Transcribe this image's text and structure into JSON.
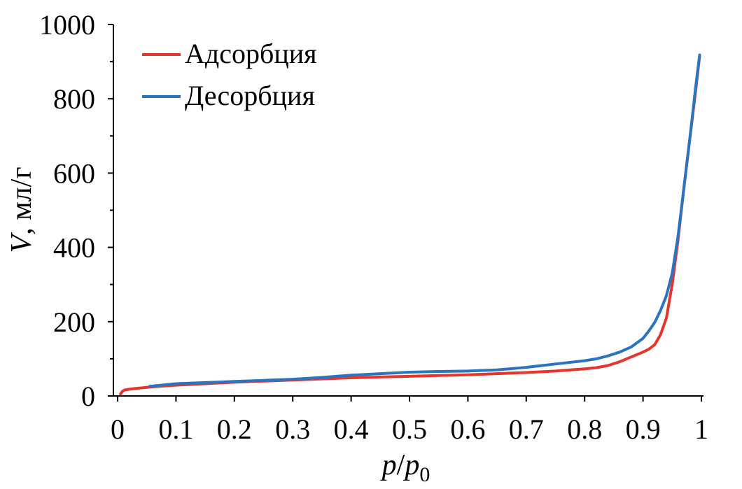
{
  "chart_data": {
    "type": "line",
    "title": "",
    "xlabel": {
      "var1": "p",
      "slash": "/",
      "var2": "p",
      "sub": "0"
    },
    "ylabel": {
      "var": "V",
      "unit": ", мл/г"
    },
    "xlim": [
      0,
      1
    ],
    "ylim": [
      0,
      1000
    ],
    "x_ticks": [
      "0",
      "0.1",
      "0.2",
      "0.3",
      "0.4",
      "0.5",
      "0.6",
      "0.7",
      "0.8",
      "0.9",
      "1"
    ],
    "y_ticks": [
      "0",
      "200",
      "400",
      "600",
      "800",
      "1000"
    ],
    "legend_position": "top-left",
    "grid": false,
    "series": [
      {
        "name": "Адсорбция",
        "color": "#e8352b",
        "x": [
          0.005,
          0.008,
          0.012,
          0.02,
          0.03,
          0.05,
          0.07,
          0.1,
          0.15,
          0.2,
          0.25,
          0.3,
          0.35,
          0.4,
          0.45,
          0.5,
          0.55,
          0.6,
          0.65,
          0.7,
          0.75,
          0.8,
          0.82,
          0.84,
          0.86,
          0.88,
          0.9,
          0.91,
          0.92,
          0.93,
          0.94,
          0.95,
          0.96,
          0.97,
          0.98,
          0.99,
          0.997
        ],
        "y": [
          5,
          12,
          16,
          18,
          20,
          23,
          26,
          29,
          33,
          37,
          40,
          43,
          46,
          49,
          51,
          53,
          55,
          57,
          60,
          63,
          67,
          73,
          76,
          82,
          92,
          105,
          118,
          126,
          138,
          165,
          210,
          300,
          420,
          560,
          690,
          820,
          915
        ]
      },
      {
        "name": "Десорбция",
        "color": "#2a74c0",
        "x": [
          0.997,
          0.99,
          0.98,
          0.97,
          0.96,
          0.95,
          0.94,
          0.93,
          0.92,
          0.91,
          0.9,
          0.88,
          0.86,
          0.84,
          0.82,
          0.8,
          0.75,
          0.7,
          0.65,
          0.6,
          0.55,
          0.5,
          0.45,
          0.4,
          0.35,
          0.3,
          0.25,
          0.2,
          0.15,
          0.1,
          0.055
        ],
        "y": [
          918,
          830,
          690,
          560,
          430,
          330,
          270,
          230,
          198,
          175,
          155,
          132,
          118,
          108,
          100,
          95,
          86,
          77,
          70,
          67,
          66,
          64,
          60,
          56,
          50,
          45,
          42,
          39,
          36,
          33,
          26
        ]
      }
    ]
  }
}
